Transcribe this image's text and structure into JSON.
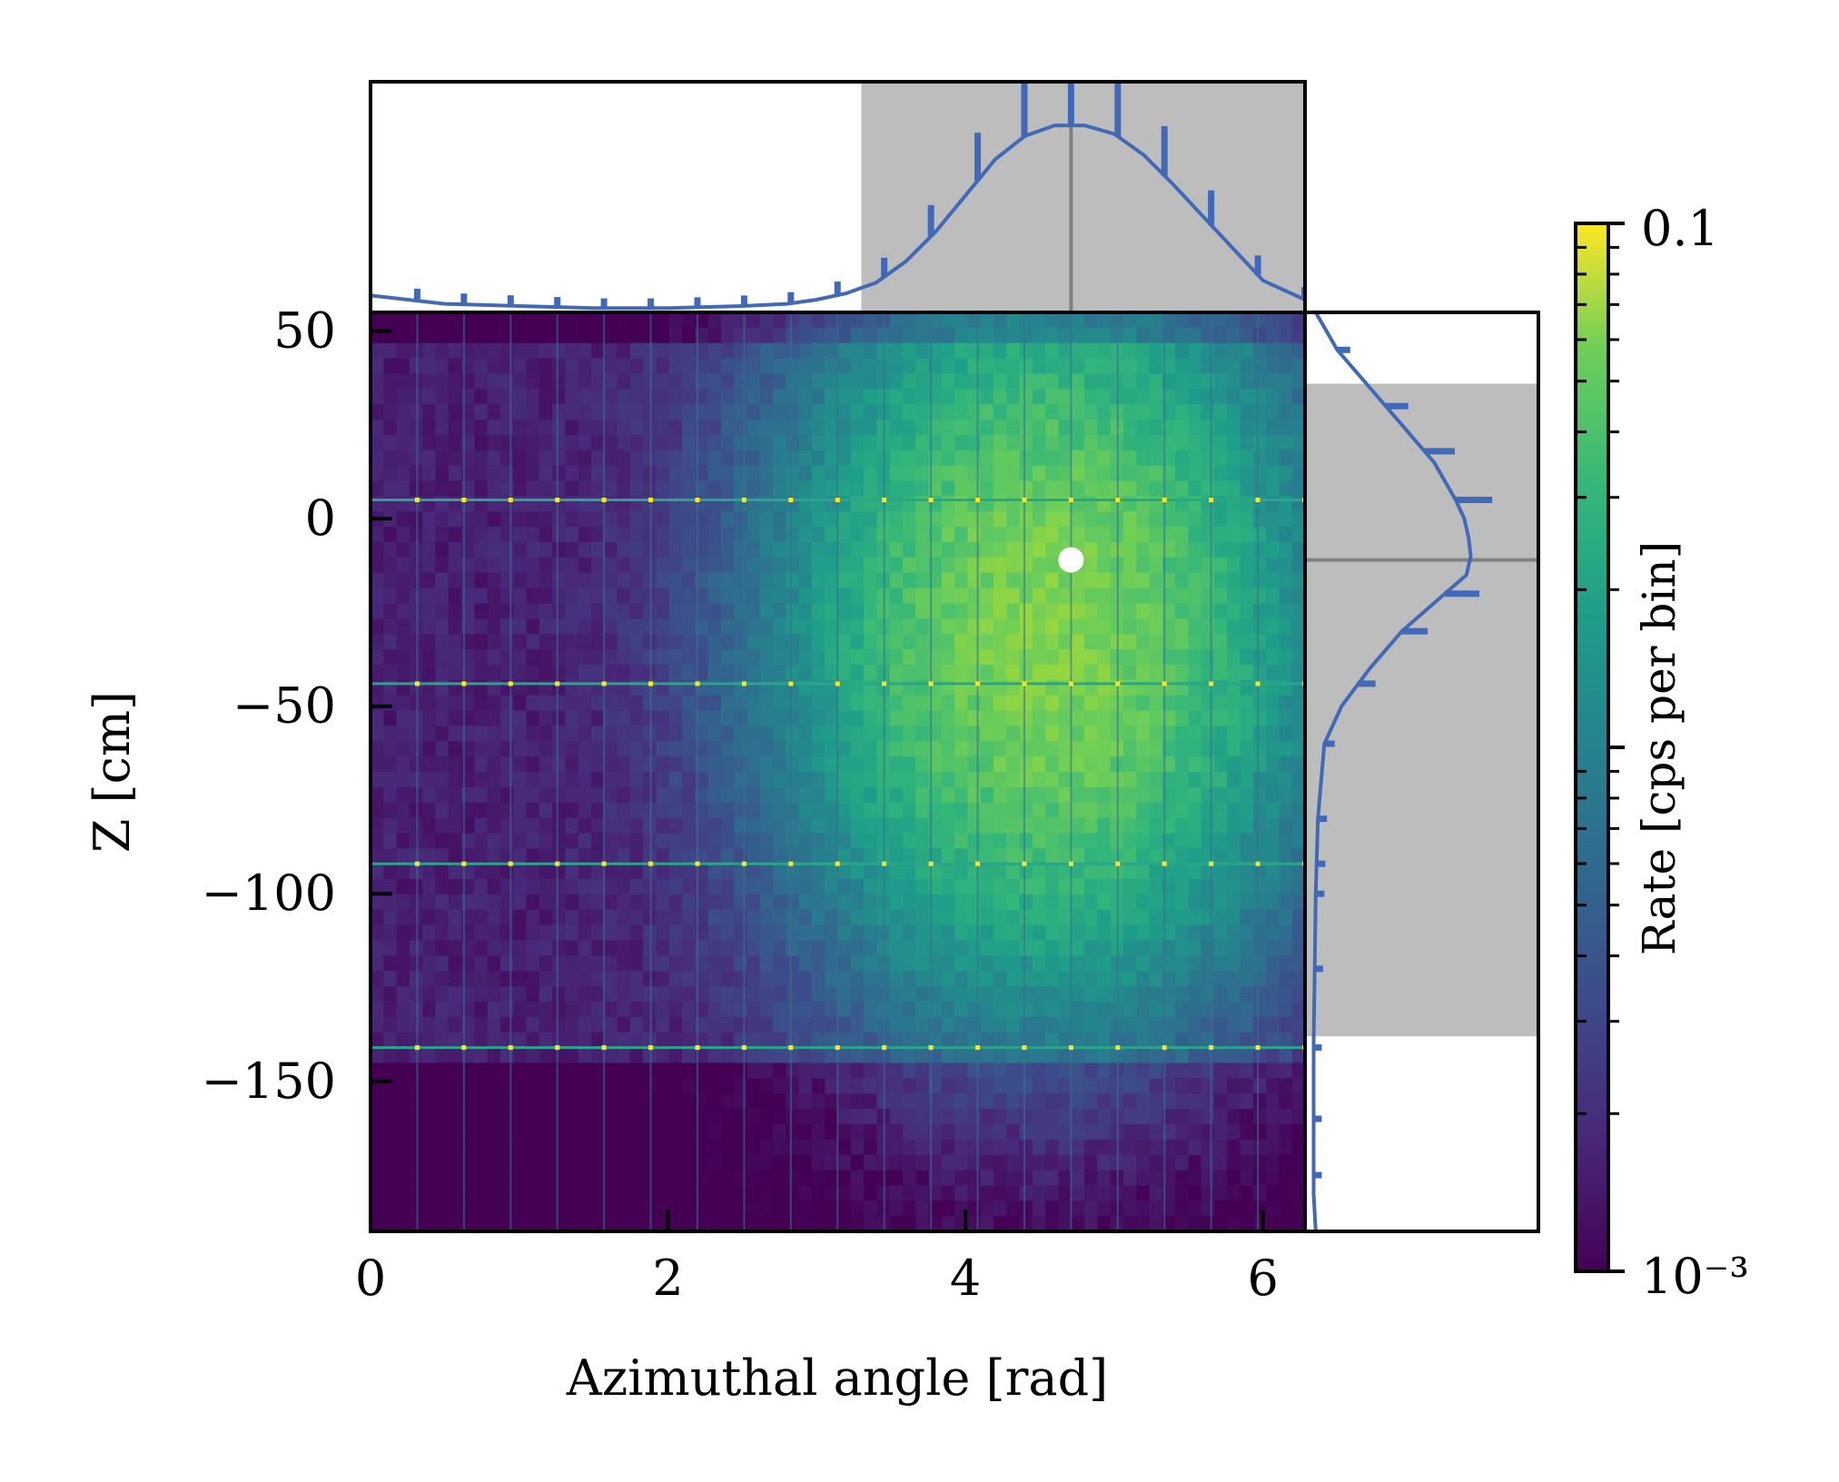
{
  "chart_data": {
    "type": "heatmap",
    "xlabel": "Azimuthal angle [rad]",
    "ylabel": "Z [cm]",
    "xlim": [
      0,
      6.283
    ],
    "ylim": [
      -190,
      55
    ],
    "x_ticks": [
      0,
      2,
      4,
      6
    ],
    "y_ticks": [
      50,
      0,
      -50,
      -100,
      -150
    ],
    "colorbar": {
      "label": "Rate [cps per bin]",
      "scale": "log",
      "range": [
        0.001,
        0.1
      ],
      "tick_labels": [
        "0.1",
        "10⁻³"
      ],
      "colormap": "viridis"
    },
    "source_marker": {
      "x": 4.71,
      "y": -11,
      "color": "#ffffff"
    },
    "grid_lines": {
      "z_levels": [
        5,
        -44,
        -92,
        -141
      ],
      "phi_spacing": 0.314
    },
    "heatmap_peak": {
      "phi": 4.55,
      "z": -30,
      "peak_rate": 0.04,
      "background_rate": 0.0015
    },
    "top_marginal": {
      "line_color": "#4169b8",
      "shade_range_x": [
        3.3,
        6.283
      ],
      "reference_x": 4.71,
      "profile_phi": [
        0,
        0.5,
        1.0,
        1.5,
        2.0,
        2.5,
        2.8,
        3.0,
        3.2,
        3.4,
        3.6,
        3.8,
        4.0,
        4.2,
        4.4,
        4.6,
        4.8,
        5.0,
        5.2,
        5.4,
        5.6,
        5.8,
        6.0,
        6.283
      ],
      "profile_rel": [
        0.08,
        0.04,
        0.03,
        0.02,
        0.02,
        0.03,
        0.04,
        0.06,
        0.09,
        0.14,
        0.24,
        0.38,
        0.55,
        0.72,
        0.83,
        0.88,
        0.88,
        0.84,
        0.74,
        0.6,
        0.45,
        0.3,
        0.15,
        0.06
      ]
    },
    "right_marginal": {
      "line_color": "#4169b8",
      "shade_range_y": [
        -138,
        36
      ],
      "reference_y": -11,
      "profile_z": [
        55,
        45,
        35,
        25,
        15,
        5,
        0,
        -5,
        -10,
        -15,
        -20,
        -30,
        -40,
        -50,
        -60,
        -80,
        -100,
        -120,
        -140,
        -160,
        -180,
        -190
      ],
      "profile_rel": [
        0.05,
        0.15,
        0.3,
        0.45,
        0.6,
        0.7,
        0.74,
        0.76,
        0.77,
        0.75,
        0.65,
        0.45,
        0.3,
        0.17,
        0.09,
        0.06,
        0.05,
        0.045,
        0.04,
        0.04,
        0.04,
        0.05
      ]
    }
  }
}
